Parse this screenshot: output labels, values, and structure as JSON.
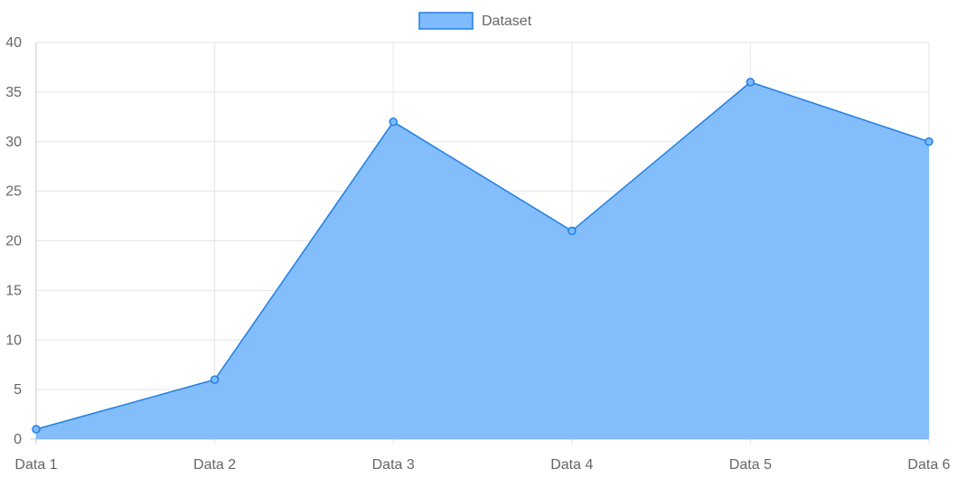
{
  "chart_data": {
    "type": "area",
    "categories": [
      "Data 1",
      "Data 2",
      "Data 3",
      "Data 4",
      "Data 5",
      "Data 6"
    ],
    "series": [
      {
        "name": "Dataset",
        "values": [
          1,
          6,
          32,
          21,
          36,
          30
        ]
      }
    ],
    "y_ticks": [
      "0",
      "5",
      "10",
      "15",
      "20",
      "25",
      "30",
      "35",
      "40"
    ],
    "ylim": [
      0,
      40
    ],
    "grid": true,
    "legend_position": "top-center",
    "colors": {
      "fill": "#7fbbfc",
      "line": "#1f7fe6",
      "grid": "#e5e5e5",
      "text": "#666666"
    }
  }
}
